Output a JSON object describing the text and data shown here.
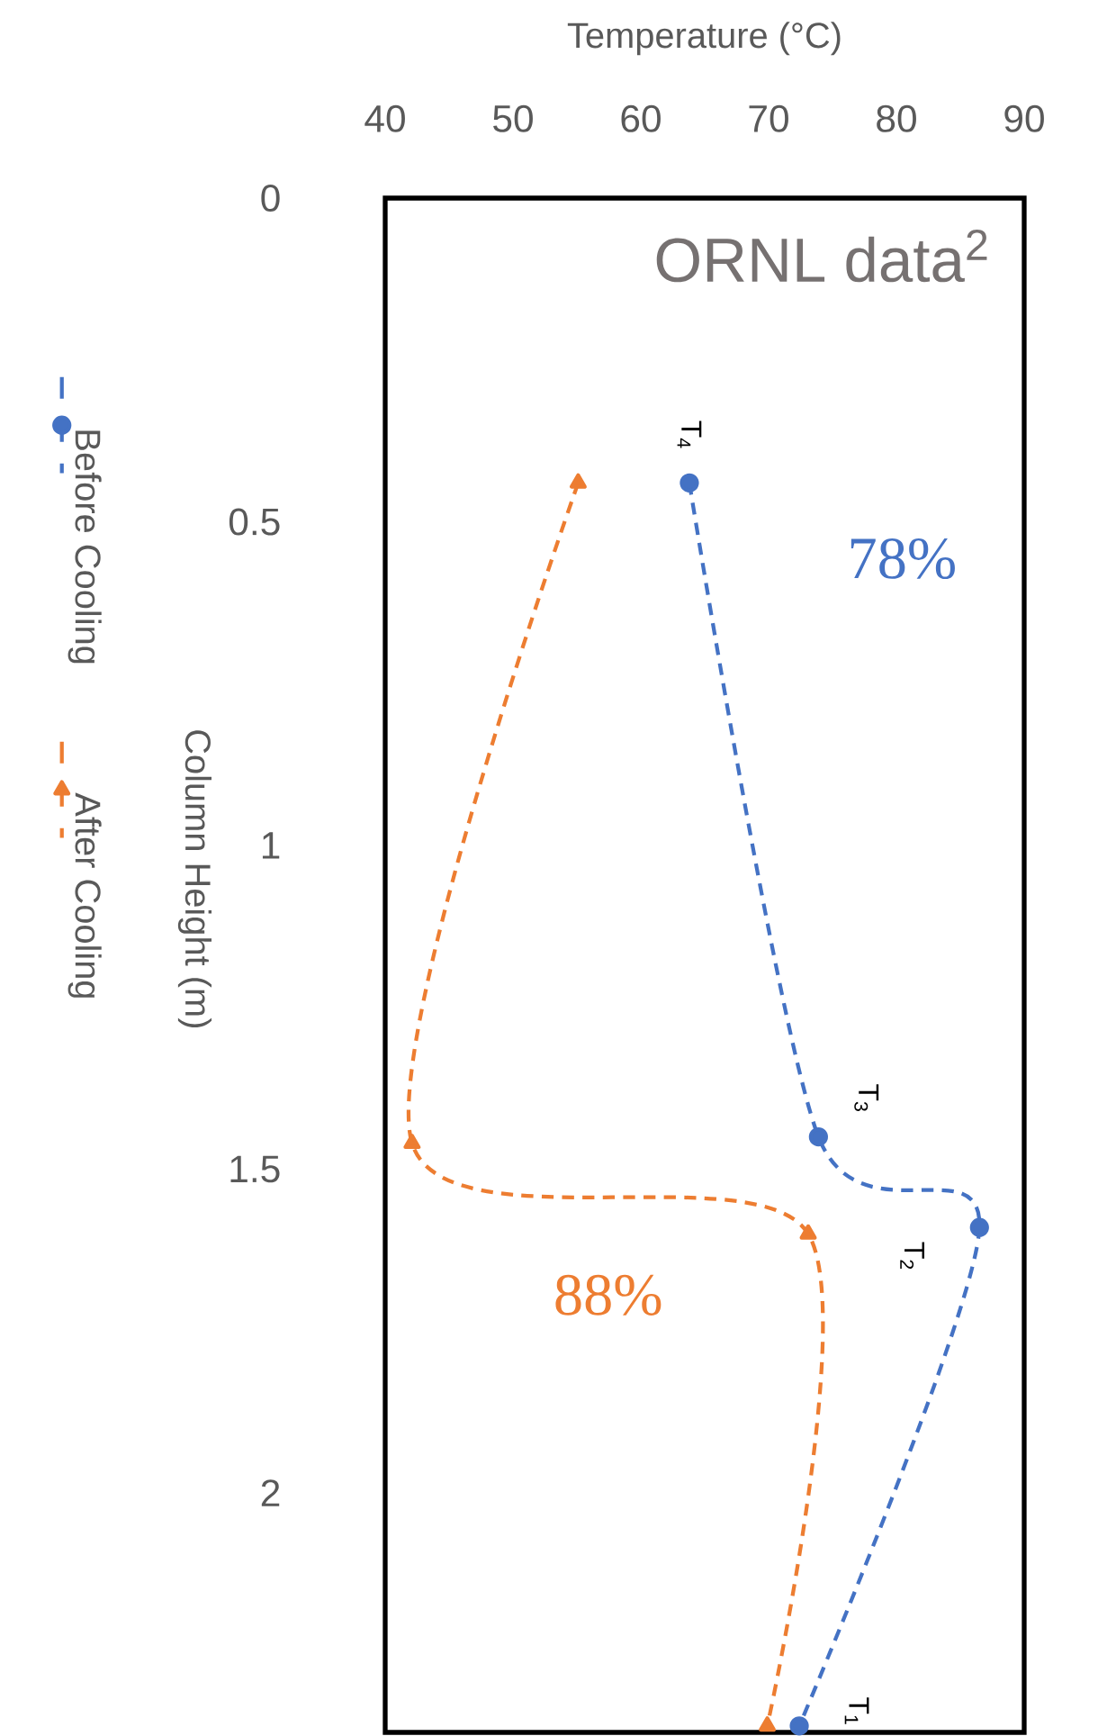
{
  "chart_data": {
    "type": "line",
    "xlabel": "Temperature (°C)",
    "ylabel": "Column Height (m)",
    "xlim": [
      40,
      90
    ],
    "xticks": [
      40,
      50,
      60,
      70,
      80,
      90
    ],
    "ylim": [
      2.37,
      0
    ],
    "yticks": [
      0,
      0.5,
      1,
      1.5,
      2
    ],
    "grid": false,
    "legend": "left",
    "line_style": "dashed",
    "series": [
      {
        "name": "Before Cooling",
        "color": "#4472c4",
        "marker": "circle",
        "x": [
          63.8,
          73.9,
          86.5,
          72.4
        ],
        "values": [
          0.44,
          1.45,
          1.59,
          2.36
        ]
      },
      {
        "name": "After Cooling",
        "color": "#ed7d31",
        "marker": "triangle",
        "x": [
          55.1,
          42.1,
          73.1,
          69.9
        ],
        "values": [
          0.44,
          1.46,
          1.6,
          2.36
        ]
      }
    ],
    "annotations": [
      "ORNL data$^{2}$",
      "78%",
      "88%",
      {
        "text": "T$_{4}$",
        "x": 63.8,
        "y": 0.44
      },
      {
        "text": "T$_{3}$",
        "x": 73.9,
        "y": 1.45
      },
      {
        "text": "T$_{2}$",
        "x": 86.5,
        "y": 1.59
      },
      {
        "text": "T$_{1}$",
        "x": 72.4,
        "y": 2.36
      }
    ]
  }
}
